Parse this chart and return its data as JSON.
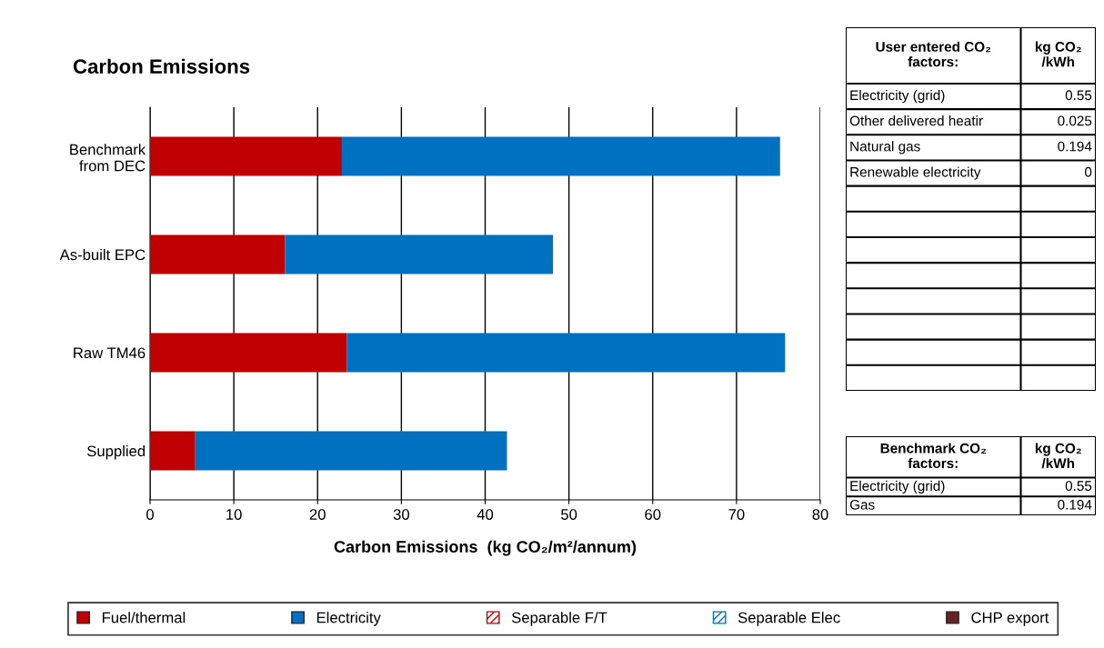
{
  "chart_data": [
    {
      "type": "bar",
      "orientation": "horizontal",
      "stacked": true,
      "title": "Carbon Emissions",
      "xlabel": "Carbon Emissions  (kg CO₂/m²/annum)",
      "categories": [
        "Benchmark\nfrom DEC",
        "As-built EPC",
        "Raw TM46",
        "Supplied"
      ],
      "series": [
        {
          "name": "Fuel/thermal",
          "color": "#c00000",
          "values": [
            22.9,
            16.1,
            23.5,
            5.4
          ]
        },
        {
          "name": "Electricity",
          "color": "#0070c0",
          "values": [
            52.3,
            32.0,
            52.3,
            37.2
          ]
        },
        {
          "name": "Separable F/T",
          "color": "#c00000",
          "values": [
            0,
            0,
            0,
            0
          ]
        },
        {
          "name": "Separable Elec",
          "color": "#0070c0",
          "values": [
            0,
            0,
            0,
            0
          ]
        },
        {
          "name": "CHP export",
          "color": "#632523",
          "values": [
            0,
            0,
            0,
            0
          ]
        }
      ],
      "xlim": [
        0,
        80
      ],
      "xticks": [
        0,
        10,
        20,
        30,
        40,
        50,
        60,
        70,
        80
      ],
      "grid": "x",
      "legend": "bottom"
    },
    {
      "type": "other",
      "title": "User entered CO₂\nfactors:",
      "subtitle": "kg CO₂\n/kWh",
      "categories": [
        "Electricity (grid)",
        "Other delivered heatir",
        "Natural gas",
        "Renewable electricity",
        null,
        null,
        null,
        null,
        null,
        null,
        null,
        null
      ],
      "values": [
        0.55,
        0.025,
        0.194,
        0,
        null,
        null,
        null,
        null,
        null,
        null,
        null,
        null
      ],
      "data_labels": true
    },
    {
      "type": "other",
      "title": "Benchmark CO₂\nfactors:",
      "subtitle": "kg CO₂\n/kWh",
      "categories": [
        "Electricity (grid)",
        "Gas"
      ],
      "values": [
        0.55,
        0.194
      ],
      "data_labels": true
    }
  ]
}
